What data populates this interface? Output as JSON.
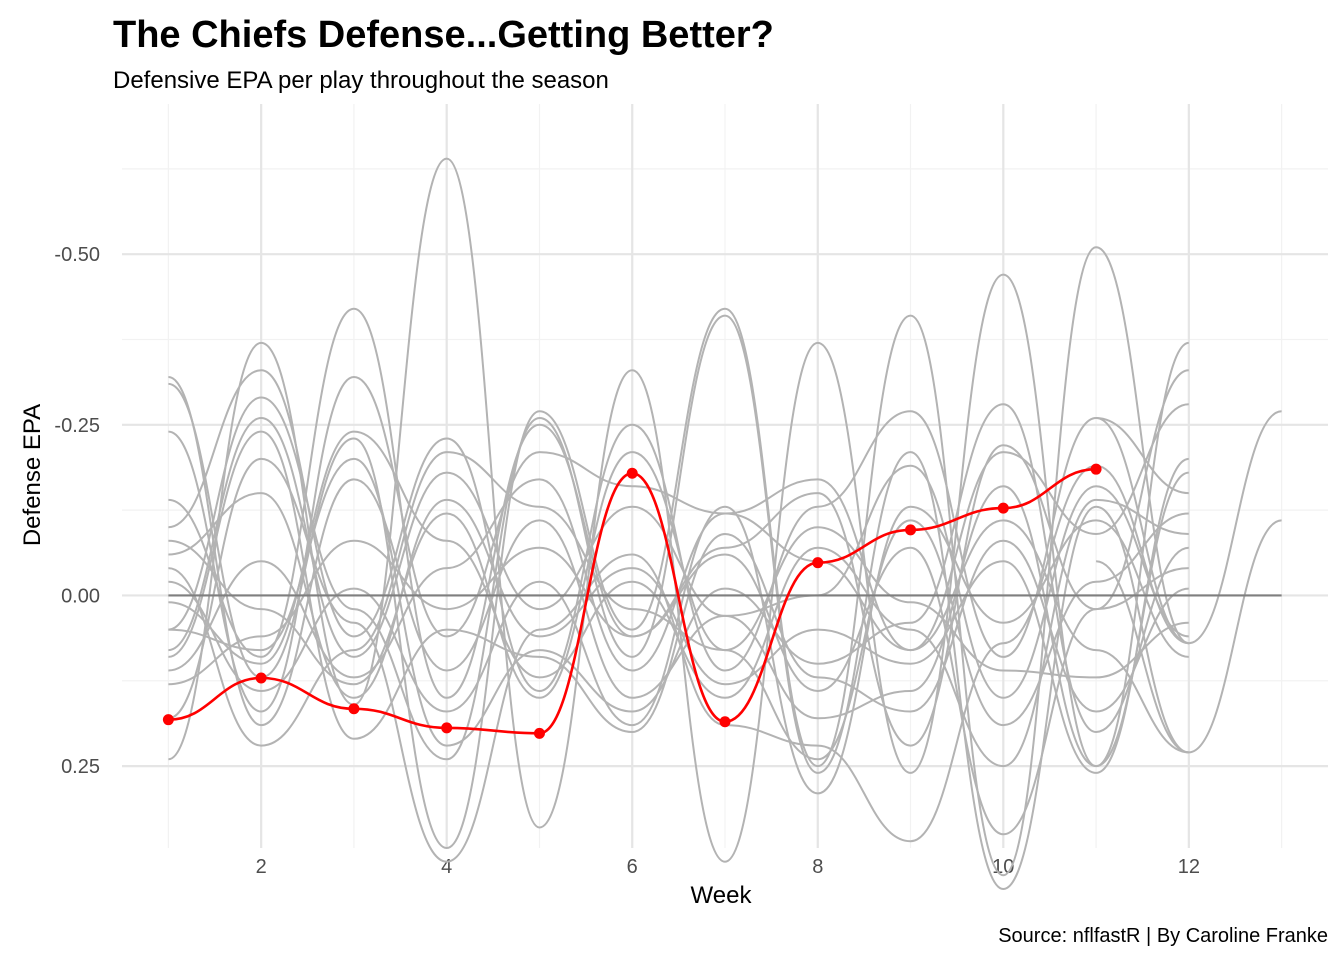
{
  "chart_data": {
    "type": "line",
    "title": "The Chiefs Defense...Getting Better?",
    "subtitle": "Defensive EPA per play throughout the season",
    "xlabel": "Week",
    "ylabel": "Defense EPA",
    "caption": "Source: nflfastR | By Caroline Franke",
    "xlim": [
      0.5,
      13.5
    ],
    "ylim": [
      0.37,
      -0.72
    ],
    "y_reversed": true,
    "x_ticks": [
      2,
      4,
      6,
      8,
      10,
      12
    ],
    "x_tick_labels": [
      "2",
      "4",
      "6",
      "8",
      "10",
      "12"
    ],
    "y_ticks": [
      -0.5,
      -0.25,
      0.0,
      0.25
    ],
    "y_tick_labels": [
      "-0.50",
      "-0.25",
      "0.00",
      "0.25"
    ],
    "grid": true,
    "reference_line": 0,
    "highlight_color": "#ff0000",
    "other_color": "#b3b3b3",
    "reference_color": "#7f7f7f",
    "x": [
      1,
      2,
      3,
      4,
      5,
      6,
      7,
      8,
      9,
      10,
      11,
      12
    ],
    "highlight_series": {
      "x": [
        1,
        2,
        3,
        4,
        5,
        6,
        7,
        8,
        9,
        10,
        11
      ],
      "values": [
        0.182,
        0.121,
        0.166,
        0.194,
        0.202,
        -0.179,
        0.185,
        -0.048,
        -0.096,
        -0.128,
        -0.185
      ]
    },
    "series": [
      {
        "x": [
          1,
          2,
          3,
          4,
          5,
          6,
          7,
          8,
          9,
          10,
          11,
          12
        ],
        "values": [
          -0.31,
          0.12,
          -0.23,
          0.37,
          -0.27,
          0.05,
          -0.42,
          0.25,
          -0.41,
          0.41,
          -0.51,
          0.07
        ]
      },
      {
        "x": [
          1,
          2,
          3,
          4,
          5,
          6,
          7,
          8,
          9,
          10,
          11,
          12
        ],
        "values": [
          0.24,
          -0.37,
          0.16,
          -0.64,
          0.34,
          -0.33,
          0.39,
          -0.37,
          0.26,
          -0.47,
          0.25,
          -0.37
        ]
      },
      {
        "x": [
          1,
          2,
          3,
          4,
          5,
          6,
          7,
          8,
          9,
          10,
          11,
          12
        ],
        "values": [
          0.05,
          -0.29,
          0.02,
          0.24,
          -0.26,
          0.09,
          -0.41,
          0.26,
          -0.21,
          0.43,
          -0.13,
          0.23
        ]
      },
      {
        "x": [
          1,
          2,
          3,
          4,
          5,
          6,
          7,
          8,
          9,
          10,
          11,
          12
        ],
        "values": [
          -0.14,
          0.09,
          -0.42,
          0.15,
          -0.25,
          0.06,
          -0.07,
          -0.15,
          0.22,
          -0.22,
          0.02,
          -0.33
        ]
      },
      {
        "x": [
          1,
          2,
          3,
          4,
          5,
          6,
          7,
          8,
          9,
          10,
          11,
          12
        ],
        "values": [
          -0.24,
          0.17,
          -0.32,
          0.06,
          -0.21,
          -0.16,
          -0.12,
          -0.17,
          0.08,
          -0.21,
          -0.09,
          -0.28
        ]
      },
      {
        "x": [
          1,
          2,
          3,
          4,
          5,
          6,
          7,
          8,
          9,
          10,
          11,
          12
        ],
        "values": [
          -0.1,
          -0.33,
          0.06,
          -0.23,
          0.14,
          -0.25,
          0.11,
          -0.13,
          -0.27,
          0.09,
          -0.26,
          -0.15
        ]
      },
      {
        "x": [
          1,
          2,
          3,
          4,
          5,
          6,
          7,
          8,
          9,
          10,
          11,
          12
        ],
        "values": [
          0.08,
          -0.26,
          0.09,
          -0.18,
          0.02,
          -0.13,
          0.03,
          0.18,
          0.14,
          -0.16,
          0.25,
          -0.18
        ]
      },
      {
        "x": [
          1,
          2,
          3,
          4,
          5,
          6,
          7,
          8,
          9,
          10,
          11,
          12
        ],
        "values": [
          -0.32,
          0.19,
          -0.17,
          0.11,
          -0.11,
          0.15,
          0.03,
          0.0,
          -0.19,
          0.15,
          -0.16,
          0.06
        ]
      },
      {
        "x": [
          1,
          2,
          3,
          4,
          5,
          6,
          7,
          8,
          9,
          10,
          11,
          12
        ],
        "values": [
          0.01,
          0.1,
          -0.24,
          -0.08,
          0.12,
          -0.02,
          0.15,
          -0.07,
          0.05,
          0.25,
          -0.14,
          -0.09
        ]
      },
      {
        "x": [
          1,
          2,
          3,
          4,
          5,
          6,
          7,
          8,
          9,
          10,
          11,
          12
        ],
        "values": [
          -0.06,
          -0.15,
          0.15,
          -0.14,
          0.06,
          -0.04,
          0.13,
          0.05,
          0.1,
          -0.05,
          0.26,
          -0.2
        ]
      },
      {
        "x": [
          1,
          2,
          3,
          4,
          5,
          6,
          7,
          8,
          9,
          10,
          11,
          12
        ],
        "values": [
          0.13,
          0.06,
          -0.08,
          0.02,
          -0.07,
          0.06,
          -0.06,
          0.14,
          -0.07,
          0.35,
          0.02,
          -0.04
        ]
      },
      {
        "x": [
          1,
          2,
          3,
          4,
          5,
          6,
          7,
          8,
          9,
          10,
          11,
          12
        ],
        "values": [
          -0.02,
          0.14,
          -0.01,
          0.17,
          -0.02,
          0.19,
          -0.13,
          0.29,
          -0.13,
          0.04,
          -0.11,
          0.09
        ]
      },
      {
        "x": [
          1,
          2,
          3,
          4,
          5,
          6,
          7,
          8,
          9,
          10,
          11,
          12
        ],
        "values": [
          0.11,
          -0.05,
          0.12,
          -0.04,
          -0.17,
          0.11,
          -0.12,
          -0.05,
          0.08,
          -0.11,
          0.08,
          0.23
        ]
      },
      {
        "x": [
          1,
          2,
          3,
          4,
          5,
          6,
          7,
          8,
          9,
          10,
          11,
          12
        ],
        "values": [
          0.09,
          -0.24,
          0.21,
          0.05,
          0.09,
          0.2,
          -0.09,
          0.12,
          0.17,
          -0.08,
          0.17,
          -0.01
        ]
      },
      {
        "x": [
          1,
          2,
          3,
          4,
          5,
          6,
          7,
          8,
          9,
          10,
          11,
          12
        ],
        "values": [
          -0.08,
          0.02,
          0.13,
          -0.12,
          0.15,
          -0.21,
          0.08,
          0.24,
          -0.11,
          0.19,
          -0.02,
          -0.12
        ]
      },
      {
        "x": [
          1,
          2,
          3,
          4,
          5,
          6,
          7,
          8,
          9,
          10,
          11,
          12
        ],
        "values": [
          0.18,
          -0.2,
          0.04,
          0.39,
          0.05,
          -0.06,
          0.19,
          0.22,
          0.36,
          0.07,
          -0.19,
          0.07
        ]
      },
      {
        "x": [
          1,
          2,
          3,
          4,
          5,
          6,
          7,
          8,
          9,
          10,
          11,
          12
        ],
        "values": [
          -0.04,
          0.22,
          0.08,
          -0.21,
          -0.13,
          0.02,
          0.08,
          -0.1,
          0.01,
          0.11,
          0.12,
          0.04
        ]
      },
      {
        "x": [
          1,
          2,
          3,
          4,
          5,
          6,
          7,
          8,
          9,
          10,
          11,
          12
        ],
        "values": [
          0.05,
          0.08,
          -0.2,
          0.22,
          0.08,
          0.17,
          -0.01,
          0.1,
          0.04,
          -0.28,
          0.2,
          -0.07
        ]
      }
    ],
    "trailing_series": [
      {
        "x": [
          11,
          12,
          13
        ],
        "values": [
          -0.26,
          0.07,
          -0.27
        ]
      },
      {
        "x": [
          11,
          12,
          13
        ],
        "values": [
          -0.05,
          0.23,
          -0.11
        ]
      }
    ]
  }
}
